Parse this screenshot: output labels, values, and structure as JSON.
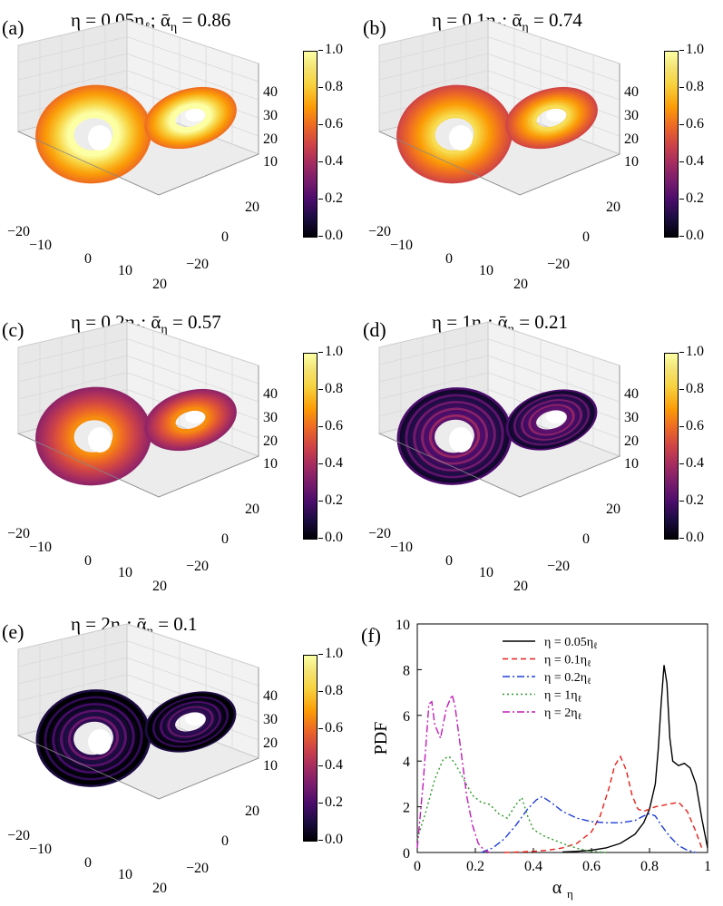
{
  "colormap": {
    "name": "inferno",
    "colors": [
      "#000004",
      "#1b0c41",
      "#4a0c6b",
      "#781c6d",
      "#a52c60",
      "#cf4446",
      "#ed6925",
      "#fb9b06",
      "#f7d13d",
      "#fcffa4"
    ]
  },
  "panels": [
    {
      "label": "(a)",
      "eta_text": "η = 0.05η",
      "alpha_text": "; ᾱ",
      "alpha_val": " = 0.86",
      "sub_l": "ℓ",
      "sub_eta": "η",
      "mean_alpha": 0.86
    },
    {
      "label": "(b)",
      "eta_text": "η = 0.1η",
      "alpha_text": "; ᾱ",
      "alpha_val": " = 0.74",
      "sub_l": "ℓ",
      "sub_eta": "η",
      "mean_alpha": 0.74
    },
    {
      "label": "(c)",
      "eta_text": "η = 0.2η",
      "alpha_text": "; ᾱ",
      "alpha_val": " = 0.57",
      "sub_l": "ℓ",
      "sub_eta": "η",
      "mean_alpha": 0.57
    },
    {
      "label": "(d)",
      "eta_text": "η = 1η",
      "alpha_text": "; ᾱ",
      "alpha_val": " = 0.21",
      "sub_l": "ℓ",
      "sub_eta": "η",
      "mean_alpha": 0.21
    },
    {
      "label": "(e)",
      "eta_text": "η = 2η",
      "alpha_text": "; ᾱ",
      "alpha_val": " = 0.1",
      "sub_l": "ℓ",
      "sub_eta": "η",
      "mean_alpha": 0.1
    }
  ],
  "axes3d": {
    "x_ticks": [
      "−20",
      "−10",
      "0",
      "10",
      "20"
    ],
    "y_ticks": [
      "20",
      "0",
      "−20"
    ],
    "z_ticks": [
      "40",
      "30",
      "20",
      "10"
    ]
  },
  "colorbar_ticks": [
    "1.0",
    "0.8",
    "0.6",
    "0.4",
    "0.2",
    "0.0"
  ],
  "chart_data": {
    "type": "line",
    "panel_label": "(f)",
    "xlabel": "α",
    "xlabel_sub": "η",
    "ylabel": "PDF",
    "xlim": [
      0,
      1
    ],
    "ylim": [
      0,
      10
    ],
    "x_ticks": [
      "0",
      "0.2",
      "0.4",
      "0.6",
      "0.8",
      "1"
    ],
    "y_ticks": [
      "0",
      "2",
      "4",
      "6",
      "8",
      "10"
    ],
    "legend_position": "top-center",
    "series": [
      {
        "name": "η = 0.05η",
        "name_sub": "ℓ",
        "color": "#000000",
        "dash": "",
        "x": [
          0.5,
          0.55,
          0.6,
          0.65,
          0.7,
          0.75,
          0.78,
          0.8,
          0.82,
          0.83,
          0.84,
          0.85,
          0.86,
          0.87,
          0.88,
          0.9,
          0.92,
          0.94,
          0.96,
          0.98,
          1.0
        ],
        "y": [
          0.02,
          0.05,
          0.1,
          0.2,
          0.4,
          0.8,
          1.3,
          1.9,
          3.0,
          4.5,
          6.5,
          8.2,
          7.4,
          5.0,
          4.0,
          3.8,
          3.9,
          3.7,
          3.0,
          1.5,
          0.2
        ]
      },
      {
        "name": "η = 0.1η",
        "name_sub": "ℓ",
        "color": "#e8201a",
        "dash": "6,4",
        "x": [
          0.3,
          0.35,
          0.4,
          0.45,
          0.5,
          0.55,
          0.6,
          0.63,
          0.66,
          0.68,
          0.7,
          0.72,
          0.74,
          0.76,
          0.78,
          0.8,
          0.82,
          0.86,
          0.9,
          0.93,
          0.96,
          0.98
        ],
        "y": [
          0.0,
          0.02,
          0.05,
          0.1,
          0.2,
          0.4,
          0.9,
          1.6,
          2.8,
          3.8,
          4.2,
          3.6,
          2.5,
          1.9,
          1.8,
          1.9,
          2.0,
          2.1,
          2.2,
          1.8,
          0.9,
          0.2
        ]
      },
      {
        "name": "η = 0.2η",
        "name_sub": "ℓ",
        "color": "#1f3fd9",
        "dash": "8,3,2,3",
        "x": [
          0.22,
          0.26,
          0.3,
          0.34,
          0.38,
          0.41,
          0.43,
          0.46,
          0.5,
          0.55,
          0.6,
          0.65,
          0.7,
          0.75,
          0.78,
          0.8,
          0.82,
          0.84,
          0.87,
          0.9,
          0.93,
          0.96
        ],
        "y": [
          0.0,
          0.2,
          0.6,
          1.2,
          1.9,
          2.3,
          2.45,
          2.2,
          1.8,
          1.5,
          1.35,
          1.3,
          1.3,
          1.4,
          1.6,
          1.7,
          1.6,
          1.2,
          0.7,
          0.3,
          0.1,
          0.0
        ]
      },
      {
        "name": "η = 1η",
        "name_sub": "ℓ",
        "color": "#2a9a2a",
        "dash": "2,3",
        "x": [
          0.0,
          0.03,
          0.06,
          0.09,
          0.11,
          0.13,
          0.16,
          0.19,
          0.22,
          0.25,
          0.28,
          0.31,
          0.34,
          0.36,
          0.38,
          0.4,
          0.44,
          0.48,
          0.52,
          0.56,
          0.6,
          0.65
        ],
        "y": [
          0.6,
          1.8,
          3.2,
          4.1,
          4.2,
          3.9,
          3.2,
          2.5,
          2.2,
          2.1,
          1.7,
          1.5,
          2.1,
          2.4,
          1.6,
          1.0,
          0.7,
          0.5,
          0.3,
          0.15,
          0.05,
          0.0
        ]
      },
      {
        "name": "η = 2η",
        "name_sub": "ℓ",
        "color": "#c21cb8",
        "dash": "8,3,2,3",
        "x": [
          0.0,
          0.02,
          0.04,
          0.05,
          0.06,
          0.08,
          0.1,
          0.12,
          0.13,
          0.15,
          0.17,
          0.19,
          0.21,
          0.23,
          0.25
        ],
        "y": [
          0.2,
          3.0,
          6.5,
          6.6,
          5.6,
          5.0,
          6.3,
          6.9,
          6.4,
          4.5,
          2.5,
          1.2,
          0.4,
          0.1,
          0.0
        ]
      }
    ]
  }
}
